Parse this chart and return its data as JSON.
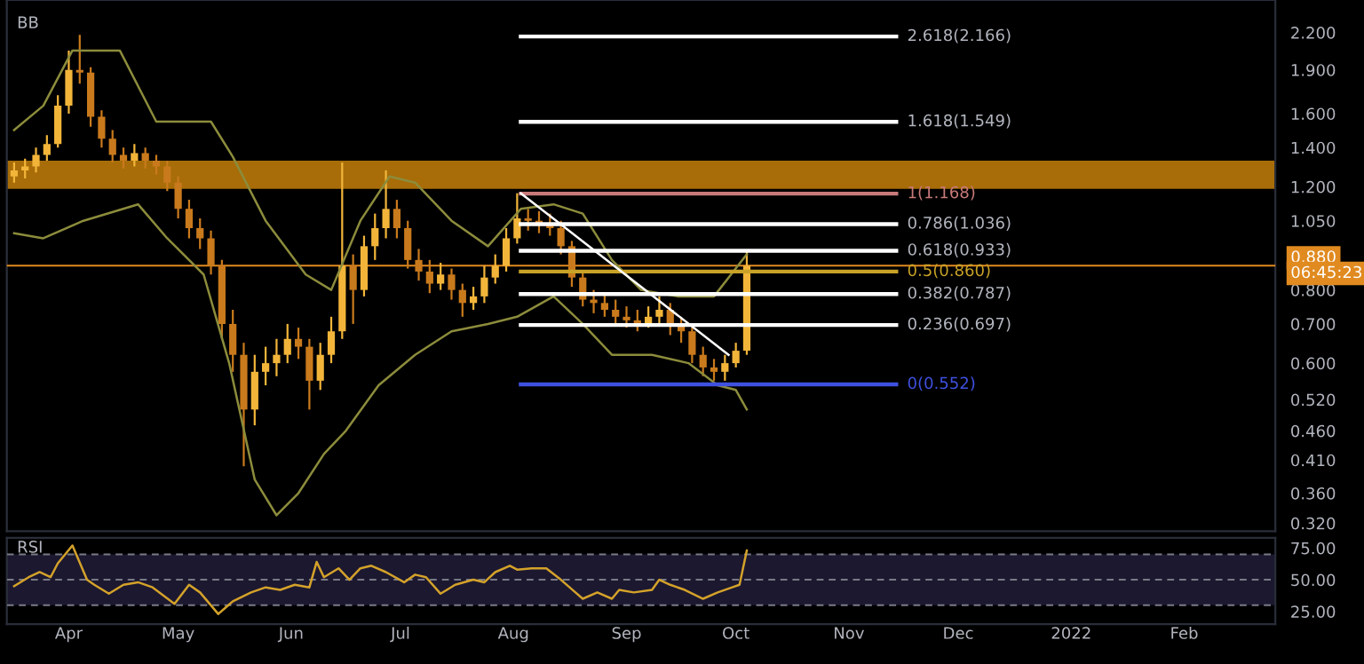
{
  "chart_data": [
    {
      "type": "candlestick",
      "title": "BB",
      "log": "y",
      "tick_labels": "y",
      "xlim": [
        "2021-03-15",
        "2022-02-26"
      ],
      "ylim": [
        0.31,
        2.5
      ],
      "yticks": [
        {
          "value": 0.32,
          "label": "0.320"
        },
        {
          "value": 0.36,
          "label": "0.360"
        },
        {
          "value": 0.41,
          "label": "0.410"
        },
        {
          "value": 0.46,
          "label": "0.460"
        },
        {
          "value": 0.52,
          "label": "0.520"
        },
        {
          "value": 0.6,
          "label": "0.600"
        },
        {
          "value": 0.7,
          "label": "0.700"
        },
        {
          "value": 0.8,
          "label": "0.800"
        },
        {
          "value": 1.05,
          "label": "1.050"
        },
        {
          "value": 1.2,
          "label": "1.200"
        },
        {
          "value": 1.4,
          "label": "1.400"
        },
        {
          "value": 1.6,
          "label": "1.600"
        },
        {
          "value": 1.9,
          "label": "1.900"
        },
        {
          "value": 2.2,
          "label": "2.200"
        }
      ],
      "series": [
        {
          "type": "line",
          "color": "#8c8c3c",
          "x": [
            "2021-03-17",
            "2021-03-25",
            "2021-04-02",
            "2021-04-15",
            "2021-04-25",
            "2021-05-10",
            "2021-05-16",
            "2021-05-25",
            "2021-06-05",
            "2021-06-12",
            "2021-06-20",
            "2021-06-28",
            "2021-07-05",
            "2021-07-15",
            "2021-07-25",
            "2021-08-03",
            "2021-08-12",
            "2021-08-20",
            "2021-08-28",
            "2021-09-05",
            "2021-09-15",
            "2021-09-25",
            "2021-10-04"
          ],
          "values": [
            1.5,
            1.65,
            2.05,
            2.05,
            1.55,
            1.55,
            1.35,
            1.05,
            0.85,
            0.8,
            1.05,
            1.25,
            1.22,
            1.05,
            0.95,
            1.1,
            1.12,
            1.08,
            0.9,
            0.8,
            0.78,
            0.78,
            0.92
          ]
        },
        {
          "type": "line",
          "color": "#8c8c3c",
          "x": [
            "2021-03-17",
            "2021-03-25",
            "2021-04-05",
            "2021-04-20",
            "2021-04-28",
            "2021-05-08",
            "2021-05-15",
            "2021-05-22",
            "2021-05-28",
            "2021-06-03",
            "2021-06-10",
            "2021-06-16",
            "2021-06-25",
            "2021-07-05",
            "2021-07-15",
            "2021-07-25",
            "2021-08-02",
            "2021-08-12",
            "2021-08-20",
            "2021-08-28",
            "2021-09-08",
            "2021-09-18",
            "2021-09-26",
            "2021-10-01",
            "2021-10-04"
          ],
          "values": [
            1.0,
            0.98,
            1.05,
            1.12,
            0.98,
            0.85,
            0.6,
            0.38,
            0.33,
            0.36,
            0.42,
            0.46,
            0.55,
            0.62,
            0.68,
            0.7,
            0.72,
            0.78,
            0.7,
            0.62,
            0.62,
            0.6,
            0.55,
            0.54,
            0.5
          ]
        },
        {
          "type": "line",
          "name": "2.618(2.166)",
          "color": "#ffffff",
          "x": [
            "2021-08-03",
            "2021-11-14"
          ],
          "values": [
            2.166,
            2.166
          ]
        },
        {
          "type": "line",
          "name": "1.618(1.549)",
          "color": "#ffffff",
          "x": [
            "2021-08-03",
            "2021-11-14"
          ],
          "values": [
            1.549,
            1.549
          ]
        },
        {
          "type": "line",
          "name": "1(1.168)",
          "color": "#c87a7a",
          "x": [
            "2021-08-03",
            "2021-11-14"
          ],
          "values": [
            1.168,
            1.168
          ]
        },
        {
          "type": "line",
          "name": "0.786(1.036)",
          "color": "#ffffff",
          "x": [
            "2021-08-03",
            "2021-11-14"
          ],
          "values": [
            1.036,
            1.036
          ]
        },
        {
          "type": "line",
          "name": "0.618(0.933)",
          "color": "#ffffff",
          "x": [
            "2021-08-03",
            "2021-11-14"
          ],
          "values": [
            0.933,
            0.933
          ]
        },
        {
          "type": "line",
          "name": "0.5(0.860)",
          "color": "#c9a227",
          "x": [
            "2021-08-03",
            "2021-11-14"
          ],
          "values": [
            0.86,
            0.86
          ]
        },
        {
          "type": "line",
          "name": "0.382(0.787)",
          "color": "#ffffff",
          "x": [
            "2021-08-03",
            "2021-11-14"
          ],
          "values": [
            0.787,
            0.787
          ]
        },
        {
          "type": "line",
          "name": "0.236(0.697)",
          "color": "#ffffff",
          "x": [
            "2021-08-03",
            "2021-11-14"
          ],
          "values": [
            0.697,
            0.697
          ]
        },
        {
          "type": "line",
          "name": "0(0.552)",
          "color": "#3f51e0",
          "x": [
            "2021-08-03",
            "2021-11-14"
          ],
          "values": [
            0.552,
            0.552
          ]
        },
        {
          "type": "candlestick",
          "x": [
            "2021-03-17",
            "2021-03-20",
            "2021-03-23",
            "2021-03-26",
            "2021-03-29",
            "2021-04-01",
            "2021-04-04",
            "2021-04-07",
            "2021-04-10",
            "2021-04-13",
            "2021-04-16",
            "2021-04-19",
            "2021-04-22",
            "2021-04-25",
            "2021-04-28",
            "2021-05-01",
            "2021-05-04",
            "2021-05-07",
            "2021-05-10",
            "2021-05-13",
            "2021-05-16",
            "2021-05-19",
            "2021-05-22",
            "2021-05-25",
            "2021-05-28",
            "2021-05-31",
            "2021-06-03",
            "2021-06-06",
            "2021-06-09",
            "2021-06-12",
            "2021-06-15",
            "2021-06-18",
            "2021-06-21",
            "2021-06-24",
            "2021-06-27",
            "2021-06-30",
            "2021-07-03",
            "2021-07-06",
            "2021-07-09",
            "2021-07-12",
            "2021-07-15",
            "2021-07-18",
            "2021-07-21",
            "2021-07-24",
            "2021-07-27",
            "2021-07-30",
            "2021-08-02",
            "2021-08-05",
            "2021-08-08",
            "2021-08-11",
            "2021-08-14",
            "2021-08-17",
            "2021-08-20",
            "2021-08-23",
            "2021-08-26",
            "2021-08-29",
            "2021-09-01",
            "2021-09-04",
            "2021-09-07",
            "2021-09-10",
            "2021-09-13",
            "2021-09-16",
            "2021-09-19",
            "2021-09-22",
            "2021-09-25",
            "2021-09-28",
            "2021-10-01",
            "2021-10-04"
          ],
          "ohlc": [
            [
              1.25,
              1.32,
              1.22,
              1.28
            ],
            [
              1.28,
              1.34,
              1.24,
              1.3
            ],
            [
              1.3,
              1.4,
              1.27,
              1.36
            ],
            [
              1.36,
              1.47,
              1.33,
              1.42
            ],
            [
              1.42,
              1.72,
              1.4,
              1.65
            ],
            [
              1.65,
              2.05,
              1.6,
              1.9
            ],
            [
              1.9,
              2.18,
              1.8,
              1.88
            ],
            [
              1.88,
              1.92,
              1.52,
              1.58
            ],
            [
              1.58,
              1.62,
              1.4,
              1.45
            ],
            [
              1.45,
              1.5,
              1.32,
              1.36
            ],
            [
              1.36,
              1.4,
              1.29,
              1.33
            ],
            [
              1.33,
              1.42,
              1.3,
              1.37
            ],
            [
              1.37,
              1.4,
              1.29,
              1.33
            ],
            [
              1.33,
              1.36,
              1.26,
              1.3
            ],
            [
              1.3,
              1.33,
              1.18,
              1.22
            ],
            [
              1.22,
              1.25,
              1.06,
              1.1
            ],
            [
              1.1,
              1.14,
              0.98,
              1.02
            ],
            [
              1.02,
              1.06,
              0.94,
              0.98
            ],
            [
              0.98,
              1.01,
              0.85,
              0.88
            ],
            [
              0.88,
              0.9,
              0.66,
              0.7
            ],
            [
              0.7,
              0.74,
              0.58,
              0.62
            ],
            [
              0.62,
              0.65,
              0.4,
              0.5
            ],
            [
              0.5,
              0.62,
              0.47,
              0.58
            ],
            [
              0.58,
              0.64,
              0.55,
              0.6
            ],
            [
              0.6,
              0.66,
              0.57,
              0.62
            ],
            [
              0.62,
              0.7,
              0.6,
              0.66
            ],
            [
              0.66,
              0.69,
              0.61,
              0.64
            ],
            [
              0.64,
              0.66,
              0.5,
              0.56
            ],
            [
              0.56,
              0.65,
              0.54,
              0.62
            ],
            [
              0.62,
              0.72,
              0.6,
              0.68
            ],
            [
              0.68,
              1.32,
              0.66,
              0.88
            ],
            [
              0.88,
              0.92,
              0.7,
              0.8
            ],
            [
              0.8,
              0.99,
              0.78,
              0.95
            ],
            [
              0.95,
              1.08,
              0.9,
              1.02
            ],
            [
              1.02,
              1.28,
              0.98,
              1.1
            ],
            [
              1.1,
              1.14,
              0.98,
              1.02
            ],
            [
              1.02,
              1.05,
              0.87,
              0.9
            ],
            [
              0.9,
              0.94,
              0.83,
              0.86
            ],
            [
              0.86,
              0.9,
              0.79,
              0.82
            ],
            [
              0.82,
              0.89,
              0.8,
              0.85
            ],
            [
              0.85,
              0.87,
              0.77,
              0.8
            ],
            [
              0.8,
              0.82,
              0.72,
              0.76
            ],
            [
              0.76,
              0.81,
              0.74,
              0.78
            ],
            [
              0.78,
              0.88,
              0.76,
              0.84
            ],
            [
              0.84,
              0.92,
              0.82,
              0.88
            ],
            [
              0.88,
              1.02,
              0.86,
              0.98
            ],
            [
              0.98,
              1.17,
              0.96,
              1.06
            ],
            [
              1.06,
              1.1,
              1.01,
              1.05
            ],
            [
              1.05,
              1.09,
              1.0,
              1.04
            ],
            [
              1.04,
              1.08,
              0.99,
              1.02
            ],
            [
              1.02,
              1.05,
              0.92,
              0.95
            ],
            [
              0.95,
              0.97,
              0.81,
              0.84
            ],
            [
              0.84,
              0.86,
              0.75,
              0.77
            ],
            [
              0.77,
              0.8,
              0.73,
              0.76
            ],
            [
              0.76,
              0.79,
              0.72,
              0.74
            ],
            [
              0.74,
              0.77,
              0.7,
              0.72
            ],
            [
              0.72,
              0.75,
              0.69,
              0.71
            ],
            [
              0.71,
              0.74,
              0.68,
              0.7
            ],
            [
              0.7,
              0.75,
              0.69,
              0.72
            ],
            [
              0.72,
              0.78,
              0.7,
              0.74
            ],
            [
              0.74,
              0.76,
              0.67,
              0.7
            ],
            [
              0.7,
              0.72,
              0.65,
              0.68
            ],
            [
              0.68,
              0.69,
              0.6,
              0.62
            ],
            [
              0.62,
              0.64,
              0.57,
              0.59
            ],
            [
              0.59,
              0.61,
              0.56,
              0.58
            ],
            [
              0.58,
              0.62,
              0.56,
              0.6
            ],
            [
              0.6,
              0.65,
              0.59,
              0.63
            ],
            [
              0.63,
              0.93,
              0.62,
              0.88
            ]
          ],
          "colors": [
            "#f2b53a",
            "#f2b53a",
            "#f2b53a",
            "#f2b53a",
            "#f2b53a",
            "#f2b53a",
            "#c97a1c",
            "#c97a1c",
            "#c97a1c",
            "#c97a1c",
            "#c97a1c",
            "#f2b53a",
            "#c97a1c",
            "#c97a1c",
            "#c97a1c",
            "#c97a1c",
            "#c97a1c",
            "#c97a1c",
            "#c97a1c",
            "#c97a1c",
            "#c97a1c",
            "#c97a1c",
            "#f2b53a",
            "#f2b53a",
            "#f2b53a",
            "#f2b53a",
            "#c97a1c",
            "#c97a1c",
            "#f2b53a",
            "#f2b53a",
            "#f2b53a",
            "#c97a1c",
            "#f2b53a",
            "#f2b53a",
            "#f2b53a",
            "#c97a1c",
            "#c97a1c",
            "#c97a1c",
            "#c97a1c",
            "#f2b53a",
            "#c97a1c",
            "#c97a1c",
            "#f2b53a",
            "#f2b53a",
            "#f2b53a",
            "#f2b53a",
            "#f2b53a",
            "#c97a1c",
            "#c97a1c",
            "#c97a1c",
            "#c97a1c",
            "#c97a1c",
            "#c97a1c",
            "#c97a1c",
            "#c97a1c",
            "#c97a1c",
            "#c97a1c",
            "#c97a1c",
            "#f2b53a",
            "#f2b53a",
            "#c97a1c",
            "#c97a1c",
            "#c97a1c",
            "#c97a1c",
            "#c97a1c",
            "#f2b53a",
            "#f2b53a",
            "#f2b53a"
          ]
        },
        {
          "type": "line",
          "color": "#ffffff",
          "x": [
            "2021-08-03",
            "2021-09-29"
          ],
          "values": [
            1.17,
            0.62
          ]
        }
      ],
      "bands": [
        {
          "axis": "y",
          "from": 1.19,
          "to": 1.33,
          "color": "#a86d08"
        }
      ],
      "ref_lines": [
        {
          "axis": "y",
          "value": 0.88,
          "label": "0.880",
          "color": "#e08a20"
        }
      ],
      "annotations": [
        "06:45:23"
      ]
    },
    {
      "type": "line",
      "title": "RSI",
      "xlim": [
        "2021-03-15",
        "2022-02-26"
      ],
      "ylim": [
        15,
        83
      ],
      "xticks": [
        {
          "value": "2021-04-01",
          "label": "Apr"
        },
        {
          "value": "2021-05-01",
          "label": "May"
        },
        {
          "value": "2021-06-01",
          "label": "Jun"
        },
        {
          "value": "2021-07-01",
          "label": "Jul"
        },
        {
          "value": "2021-08-01",
          "label": "Aug"
        },
        {
          "value": "2021-09-01",
          "label": "Sep"
        },
        {
          "value": "2021-10-01",
          "label": "Oct"
        },
        {
          "value": "2021-11-01",
          "label": "Nov"
        },
        {
          "value": "2021-12-01",
          "label": "Dec"
        },
        {
          "value": "2022-01-01",
          "label": "2022"
        },
        {
          "value": "2022-02-01",
          "label": "Feb"
        }
      ],
      "yticks": [
        {
          "value": 25,
          "label": "25.00"
        },
        {
          "value": 50,
          "label": "50.00"
        },
        {
          "value": 75,
          "label": "75.00"
        }
      ],
      "bands": [
        {
          "axis": "y",
          "from": 30,
          "to": 70,
          "color": "#1c1830"
        }
      ],
      "ref_lines": [
        {
          "axis": "y",
          "value": 70,
          "line_style": "dashed",
          "color": "#787b86"
        },
        {
          "axis": "y",
          "value": 50,
          "line_style": "dashed",
          "color": "#787b86"
        },
        {
          "axis": "y",
          "value": 30,
          "line_style": "dashed",
          "color": "#787b86"
        }
      ],
      "series": [
        {
          "color": "#d4a22a",
          "x": [
            "2021-03-17",
            "2021-03-21",
            "2021-03-24",
            "2021-03-27",
            "2021-03-29",
            "2021-04-02",
            "2021-04-06",
            "2021-04-08",
            "2021-04-12",
            "2021-04-16",
            "2021-04-20",
            "2021-04-24",
            "2021-04-30",
            "2021-05-04",
            "2021-05-07",
            "2021-05-12",
            "2021-05-16",
            "2021-05-21",
            "2021-05-25",
            "2021-05-29",
            "2021-06-02",
            "2021-06-06",
            "2021-06-08",
            "2021-06-10",
            "2021-06-14",
            "2021-06-17",
            "2021-06-20",
            "2021-06-23",
            "2021-06-27",
            "2021-07-02",
            "2021-07-05",
            "2021-07-08",
            "2021-07-12",
            "2021-07-16",
            "2021-07-21",
            "2021-07-24",
            "2021-07-27",
            "2021-07-31",
            "2021-08-02",
            "2021-08-06",
            "2021-08-10",
            "2021-08-14",
            "2021-08-18",
            "2021-08-20",
            "2021-08-24",
            "2021-08-28",
            "2021-08-30",
            "2021-09-03",
            "2021-09-08",
            "2021-09-10",
            "2021-09-13",
            "2021-09-17",
            "2021-09-22",
            "2021-09-26",
            "2021-09-30",
            "2021-10-02",
            "2021-10-04"
          ],
          "values": [
            45,
            52,
            56,
            52,
            63,
            77,
            50,
            46,
            39,
            46,
            48,
            44,
            31,
            46,
            40,
            23,
            33,
            40,
            44,
            42,
            46,
            44,
            64,
            52,
            59,
            50,
            59,
            61,
            56,
            48,
            54,
            52,
            39,
            46,
            50,
            48,
            56,
            61,
            58,
            59,
            59,
            50,
            40,
            35,
            40,
            35,
            42,
            40,
            42,
            50,
            46,
            42,
            35,
            40,
            44,
            46,
            73
          ]
        }
      ]
    }
  ]
}
